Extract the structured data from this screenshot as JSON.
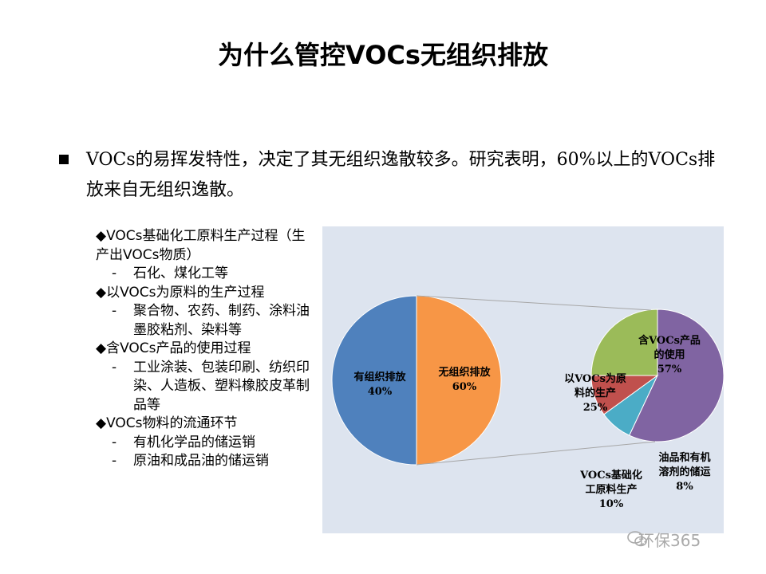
{
  "slide": {
    "title": "为什么管控VOCs无组织排放",
    "bullet": "VOCs的易挥发特性，决定了其无组织逸散较多。研究表明，60%以上的VOCs排放来自无组织逸散。"
  },
  "sources": [
    {
      "heading": "◆VOCs基础化工原料生产过程（生产出VOCs物质）",
      "subs": [
        "石化、煤化工等"
      ]
    },
    {
      "heading": "◆以VOCs为原料的生产过程",
      "subs": [
        "聚合物、农药、制药、涂料油墨胶粘剂、染料等"
      ]
    },
    {
      "heading": "◆含VOCs产品的使用过程",
      "subs": [
        "工业涂装、包装印刷、纺织印染、人造板、塑料橡胶皮革制品等"
      ]
    },
    {
      "heading": "◆VOCs物料的流通环节",
      "subs": [
        "有机化学品的储运销",
        "原油和成品油的储运销"
      ]
    }
  ],
  "sub_dash": "-",
  "watermark": "环保365",
  "chart_data": [
    {
      "type": "pie",
      "slices": [
        {
          "label": "有组织排放",
          "value": 40,
          "display": "40%",
          "color": "#4f81bd"
        },
        {
          "label": "无组织排放",
          "value": 60,
          "display": "60%",
          "color": "#f79646"
        }
      ]
    },
    {
      "type": "pie",
      "slices": [
        {
          "label": "含VOCs产品的使用",
          "value": 57,
          "display": "57%",
          "color": "#8064a2"
        },
        {
          "label": "油品和有机溶剂的储运",
          "value": 8,
          "display": "8%",
          "color": "#4bacc6"
        },
        {
          "label": "VOCs基础化工原料生产",
          "value": 10,
          "display": "10%",
          "color": "#c0504d"
        },
        {
          "label": "以VOCs为原料的生产",
          "value": 25,
          "display": "25%",
          "color": "#9bbb59"
        }
      ]
    }
  ]
}
